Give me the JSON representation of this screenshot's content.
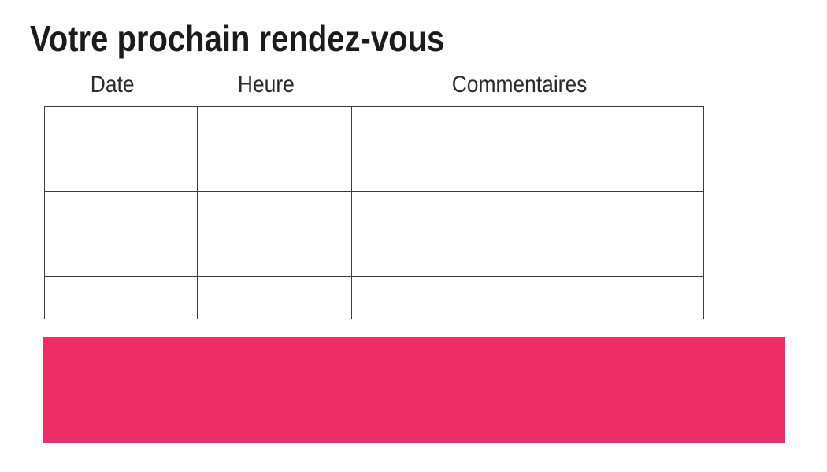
{
  "page": {
    "title": "Votre prochain rendez-vous"
  },
  "appointments_table": {
    "columns": [
      {
        "label": "Date"
      },
      {
        "label": "Heure"
      },
      {
        "label": "Commentaires"
      }
    ],
    "rows": [
      [
        "",
        "",
        ""
      ],
      [
        "",
        "",
        ""
      ],
      [
        "",
        "",
        ""
      ],
      [
        "",
        "",
        ""
      ],
      [
        "",
        "",
        ""
      ]
    ]
  },
  "colors": {
    "accent_pink": "#EE2D67",
    "table_border": "#3C3C3C",
    "title_text": "#1B1B1B",
    "header_text": "#2A2A2A",
    "background": "#FFFFFF"
  }
}
